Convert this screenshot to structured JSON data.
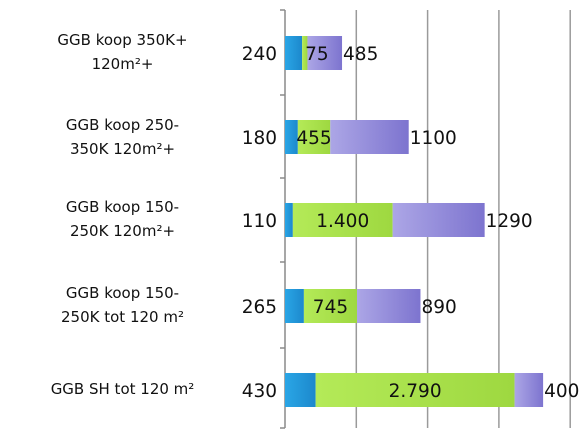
{
  "chart_data": {
    "type": "bar",
    "orientation": "horizontal",
    "stacked": true,
    "title": "",
    "xlabel": "",
    "ylabel": "",
    "xlim": [
      0,
      4100
    ],
    "grid": true,
    "legend": "none",
    "categories": [
      "GGB koop 350K+\n120m²+",
      "GGB koop 250-\n350K 120m²+",
      "GGB koop 150-\n250K 120m²+",
      "GGB koop 150-\n250K tot 120 m²",
      "GGB SH tot 120 m²"
    ],
    "series": [
      {
        "values": [
          240,
          180,
          110,
          265,
          430
        ],
        "labels": [
          "240",
          "180",
          "110",
          "265",
          "430"
        ],
        "color": "#1e96d8"
      },
      {
        "values": [
          75,
          455,
          1400,
          745,
          2790
        ],
        "labels": [
          "75",
          "455",
          "1.400",
          "745",
          "2.790"
        ],
        "color": "#a6e04a"
      },
      {
        "values": [
          485,
          1100,
          1290,
          890,
          400
        ],
        "labels": [
          "485",
          "1100",
          "1290",
          "890",
          "400"
        ],
        "color": "#8e86d6"
      }
    ]
  }
}
